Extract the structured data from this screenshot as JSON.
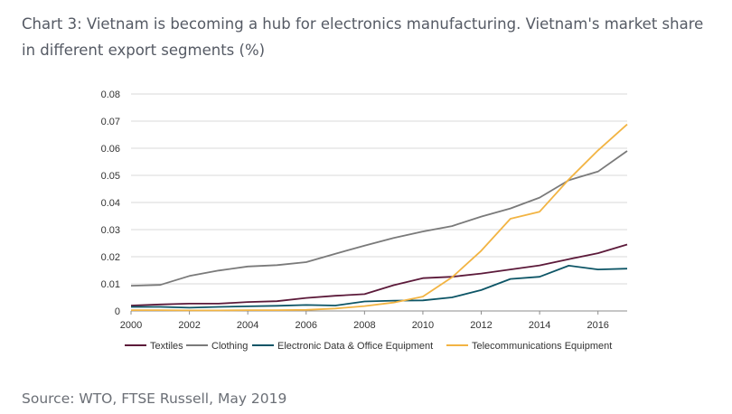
{
  "title": "Chart 3: Vietnam is becoming a hub for electronics manufacturing. Vietnam's market share in different export segments (%)",
  "source": "Source: WTO, FTSE Russell, May 2019",
  "chart_data": {
    "type": "line",
    "title": "",
    "xlabel": "",
    "ylabel": "",
    "x": [
      2000,
      2001,
      2002,
      2003,
      2004,
      2005,
      2006,
      2007,
      2008,
      2009,
      2010,
      2011,
      2012,
      2013,
      2014,
      2015,
      2016,
      2017
    ],
    "xlim": [
      2000,
      2017
    ],
    "ylim": [
      0,
      0.08
    ],
    "x_ticks": [
      "2000",
      "2002",
      "2004",
      "2006",
      "2008",
      "2010",
      "2012",
      "2014",
      "2016"
    ],
    "y_ticks": [
      "0",
      "0.01",
      "0.02",
      "0.03",
      "0.04",
      "0.05",
      "0.06",
      "0.07",
      "0.08"
    ],
    "grid": "horizontal",
    "legend_position": "bottom",
    "series": [
      {
        "name": "Textiles",
        "color": "#5c1a3a",
        "values": [
          0.002,
          0.0024,
          0.0027,
          0.0027,
          0.0033,
          0.0036,
          0.0048,
          0.0056,
          0.0062,
          0.0095,
          0.0121,
          0.0126,
          0.0138,
          0.0153,
          0.0168,
          0.0191,
          0.0213,
          0.0245
        ]
      },
      {
        "name": "Clothing",
        "color": "#7a7a7a",
        "values": [
          0.0093,
          0.0096,
          0.0129,
          0.0149,
          0.0164,
          0.0169,
          0.018,
          0.0211,
          0.0241,
          0.0269,
          0.0293,
          0.0313,
          0.0348,
          0.0378,
          0.0418,
          0.0482,
          0.0514,
          0.059
        ]
      },
      {
        "name": "Electronic Data & Office Equipment",
        "color": "#0d5566",
        "values": [
          0.0015,
          0.0015,
          0.0012,
          0.0015,
          0.0017,
          0.0019,
          0.0022,
          0.002,
          0.0035,
          0.0038,
          0.0039,
          0.005,
          0.0077,
          0.0118,
          0.0126,
          0.0167,
          0.0153,
          0.0156
        ]
      },
      {
        "name": "Telecommunications Equipment",
        "color": "#f2b443",
        "values": [
          0.0003,
          0.0003,
          0.0002,
          0.0002,
          0.0003,
          0.0003,
          0.0004,
          0.0009,
          0.0018,
          0.0031,
          0.0053,
          0.0124,
          0.0222,
          0.034,
          0.0366,
          0.0485,
          0.0592,
          0.0688
        ]
      }
    ]
  }
}
